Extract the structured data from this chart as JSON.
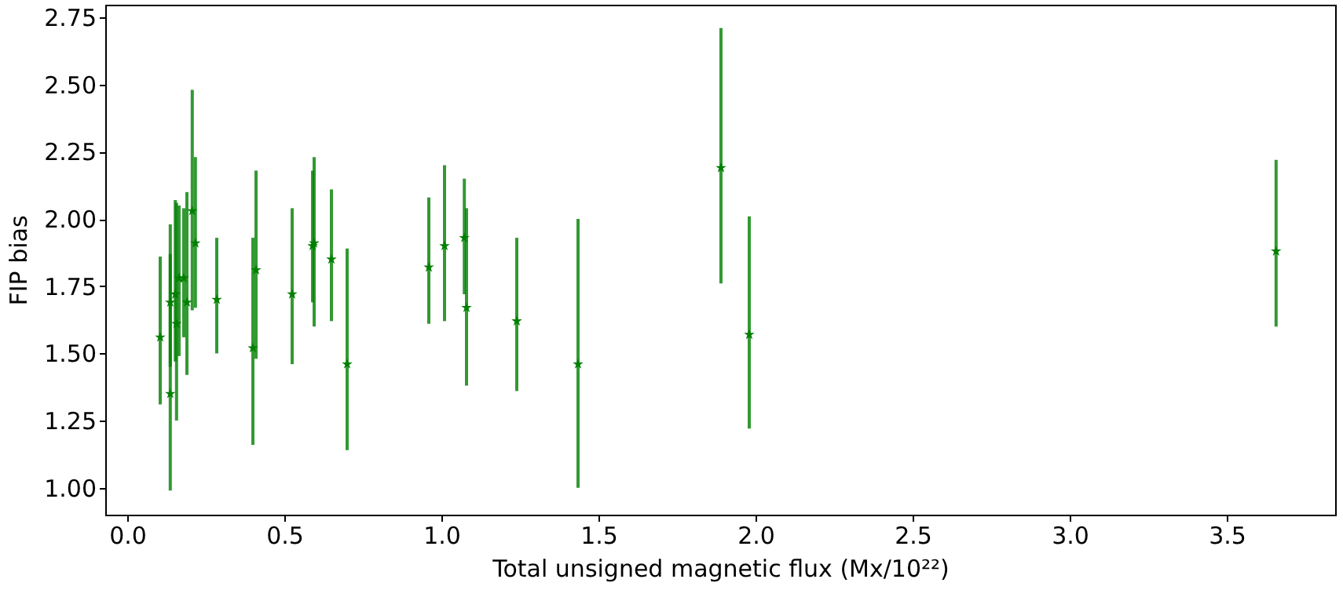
{
  "chart_data": {
    "type": "scatter",
    "xlabel": "Total unsigned magnetic flux (Mx/10²²)",
    "ylabel": "FIP bias",
    "marker": "star",
    "grid": false,
    "x": [
      0.105,
      0.137,
      0.137,
      0.153,
      0.157,
      0.165,
      0.18,
      0.19,
      0.207,
      0.217,
      0.285,
      0.4,
      0.41,
      0.525,
      0.59,
      0.595,
      0.65,
      0.7,
      0.96,
      1.01,
      1.073,
      1.08,
      1.24,
      1.435,
      1.89,
      1.98,
      3.657
    ],
    "series": [
      {
        "color": "#007f00",
        "values": [
          1.56,
          1.35,
          1.69,
          1.72,
          1.61,
          1.78,
          1.78,
          1.69,
          2.03,
          1.91,
          1.7,
          1.52,
          1.81,
          1.72,
          1.9,
          1.91,
          1.85,
          1.46,
          1.82,
          1.9,
          1.93,
          1.67,
          1.62,
          1.46,
          2.19,
          1.57,
          1.88
        ],
        "errors": [
          [
            1.31,
            1.86
          ],
          [
            0.99,
            1.98
          ],
          [
            1.45,
            1.87
          ],
          [
            1.47,
            2.07
          ],
          [
            1.25,
            2.06
          ],
          [
            1.49,
            2.05
          ],
          [
            1.56,
            2.04
          ],
          [
            1.42,
            2.1
          ],
          [
            1.66,
            2.48
          ],
          [
            1.67,
            2.23
          ],
          [
            1.5,
            1.93
          ],
          [
            1.16,
            1.93
          ],
          [
            1.48,
            2.18
          ],
          [
            1.46,
            2.04
          ],
          [
            1.69,
            2.18
          ],
          [
            1.6,
            2.23
          ],
          [
            1.62,
            2.11
          ],
          [
            1.14,
            1.89
          ],
          [
            1.61,
            2.08
          ],
          [
            1.62,
            2.2
          ],
          [
            1.72,
            2.15
          ],
          [
            1.38,
            2.04
          ],
          [
            1.36,
            1.93
          ],
          [
            1.0,
            2.0
          ],
          [
            1.76,
            2.71
          ],
          [
            1.22,
            2.01
          ],
          [
            1.6,
            2.22
          ]
        ]
      }
    ],
    "xlim": [
      -0.07,
      3.845
    ],
    "ylim": [
      0.9,
      2.797
    ],
    "xticks": [
      {
        "value": 0,
        "label": "0.0"
      },
      {
        "value": 0.5,
        "label": "0.5"
      },
      {
        "value": 1,
        "label": "1.0"
      },
      {
        "value": 1.5,
        "label": "1.5"
      },
      {
        "value": 2,
        "label": "2.0"
      },
      {
        "value": 2.5,
        "label": "2.5"
      },
      {
        "value": 3,
        "label": "3.0"
      },
      {
        "value": 3.5,
        "label": "3.5"
      }
    ],
    "yticks": [
      {
        "value": 1,
        "label": "1.00"
      },
      {
        "value": 1.25,
        "label": "1.25"
      },
      {
        "value": 1.5,
        "label": "1.50"
      },
      {
        "value": 1.75,
        "label": "1.75"
      },
      {
        "value": 2,
        "label": "2.00"
      },
      {
        "value": 2.25,
        "label": "2.25"
      },
      {
        "value": 2.5,
        "label": "2.50"
      },
      {
        "value": 2.75,
        "label": "2.75"
      }
    ]
  }
}
